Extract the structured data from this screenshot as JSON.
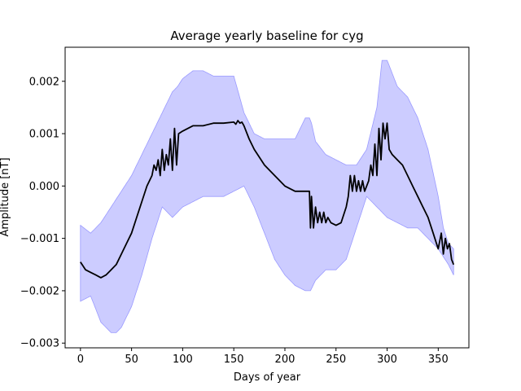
{
  "chart_data": {
    "type": "area",
    "title": "Average yearly baseline for cyg",
    "xlabel": "Days of year",
    "ylabel": "Amplitude [nT]",
    "xlim": [
      -15,
      380
    ],
    "ylim": [
      -0.00309,
      0.00265
    ],
    "grid": false,
    "legend": "none",
    "xticks": [
      0,
      50,
      100,
      150,
      200,
      250,
      300,
      350
    ],
    "xtick_labels": [
      "0",
      "50",
      "100",
      "150",
      "200",
      "250",
      "300",
      "350"
    ],
    "yticks": [
      -0.003,
      -0.002,
      -0.001,
      0.0,
      0.001,
      0.002
    ],
    "ytick_labels": [
      "−0.003",
      "−0.002",
      "−0.001",
      "0.000",
      "0.001",
      "0.002"
    ],
    "colors": {
      "band_fill": "#ccccff",
      "band_edge": "#9a9aff",
      "mean_line": "#000000"
    },
    "band_upper": {
      "x": [
        0,
        10,
        20,
        30,
        40,
        50,
        60,
        70,
        75,
        80,
        85,
        90,
        95,
        100,
        110,
        120,
        130,
        140,
        150,
        160,
        170,
        180,
        190,
        200,
        210,
        220,
        224,
        226,
        230,
        240,
        250,
        260,
        270,
        280,
        285,
        290,
        295,
        300,
        310,
        320,
        330,
        340,
        350,
        355,
        360,
        365
      ],
      "y": [
        -0.00075,
        -0.0009,
        -0.0007,
        -0.0004,
        -0.0001,
        0.0002,
        0.0006,
        0.001,
        0.0012,
        0.0014,
        0.0016,
        0.0018,
        0.0019,
        0.00205,
        0.0022,
        0.0022,
        0.0021,
        0.0021,
        0.0021,
        0.0014,
        0.001,
        0.0009,
        0.0009,
        0.0009,
        0.0009,
        0.0013,
        0.0013,
        0.0012,
        0.00085,
        0.0006,
        0.0005,
        0.0004,
        0.0004,
        0.0007,
        0.0011,
        0.0015,
        0.0024,
        0.0024,
        0.0019,
        0.0017,
        0.0013,
        0.0007,
        -0.0002,
        -0.0008,
        -0.0011,
        -0.0012
      ]
    },
    "band_lower": {
      "x": [
        0,
        10,
        20,
        30,
        35,
        40,
        50,
        60,
        70,
        80,
        90,
        100,
        110,
        120,
        130,
        140,
        150,
        160,
        170,
        180,
        190,
        200,
        210,
        220,
        225,
        230,
        240,
        250,
        255,
        260,
        270,
        280,
        290,
        300,
        310,
        320,
        330,
        340,
        350,
        360,
        365
      ],
      "y": [
        -0.0022,
        -0.0021,
        -0.0026,
        -0.0028,
        -0.0028,
        -0.0027,
        -0.0023,
        -0.0017,
        -0.001,
        -0.0004,
        -0.0006,
        -0.0004,
        -0.0003,
        -0.0002,
        -0.0002,
        -0.0002,
        -0.0001,
        0.0,
        -0.0004,
        -0.0009,
        -0.0014,
        -0.0017,
        -0.0019,
        -0.002,
        -0.002,
        -0.0018,
        -0.0016,
        -0.0016,
        -0.0015,
        -0.0014,
        -0.0008,
        -0.0002,
        -0.0004,
        -0.0006,
        -0.0007,
        -0.0008,
        -0.0008,
        -0.001,
        -0.0012,
        -0.0015,
        -0.0017
      ]
    },
    "series": [
      {
        "x": [
          0,
          5,
          10,
          15,
          20,
          25,
          30,
          35,
          40,
          45,
          50,
          55,
          60,
          65,
          70,
          72,
          74,
          76,
          78,
          80,
          82,
          84,
          86,
          88,
          90,
          92,
          94,
          96,
          100,
          110,
          120,
          130,
          140,
          150,
          152,
          154,
          156,
          158,
          160,
          165,
          170,
          180,
          190,
          200,
          210,
          220,
          224,
          225,
          226,
          228,
          230,
          232,
          234,
          236,
          238,
          240,
          242,
          245,
          250,
          255,
          260,
          262,
          264,
          266,
          268,
          270,
          272,
          274,
          276,
          278,
          280,
          282,
          284,
          286,
          288,
          290,
          292,
          294,
          296,
          298,
          300,
          302,
          305,
          310,
          315,
          320,
          325,
          330,
          335,
          340,
          345,
          350,
          353,
          355,
          357,
          359,
          361,
          363,
          365
        ],
        "y": [
          -0.00145,
          -0.0016,
          -0.00165,
          -0.0017,
          -0.00175,
          -0.0017,
          -0.0016,
          -0.0015,
          -0.0013,
          -0.0011,
          -0.0009,
          -0.0006,
          -0.0003,
          0.0,
          0.0002,
          0.0004,
          0.0003,
          0.0005,
          0.0002,
          0.0007,
          0.0003,
          0.0006,
          0.0004,
          0.0009,
          0.0003,
          0.0011,
          0.0004,
          0.001,
          0.00105,
          0.00115,
          0.00115,
          0.0012,
          0.0012,
          0.00122,
          0.00118,
          0.00125,
          0.0012,
          0.00122,
          0.00115,
          0.0009,
          0.0007,
          0.0004,
          0.0002,
          0.0,
          -0.0001,
          -0.0001,
          -0.0001,
          -0.0008,
          -0.0002,
          -0.0008,
          -0.0004,
          -0.0007,
          -0.0005,
          -0.0007,
          -0.0005,
          -0.0007,
          -0.0006,
          -0.0007,
          -0.00075,
          -0.0007,
          -0.0004,
          -0.0002,
          0.0002,
          -0.0001,
          0.0002,
          -0.0001,
          0.0001,
          -0.0001,
          0.0001,
          -0.0001,
          0.0,
          0.0001,
          0.0004,
          0.0002,
          0.0008,
          0.0002,
          0.0011,
          0.0005,
          0.0012,
          0.0009,
          0.0012,
          0.0007,
          0.0006,
          0.0005,
          0.0004,
          0.0002,
          0.0,
          -0.0002,
          -0.0004,
          -0.0006,
          -0.0009,
          -0.0012,
          -0.0009,
          -0.0013,
          -0.001,
          -0.0012,
          -0.0011,
          -0.0014,
          -0.0015
        ]
      }
    ]
  }
}
